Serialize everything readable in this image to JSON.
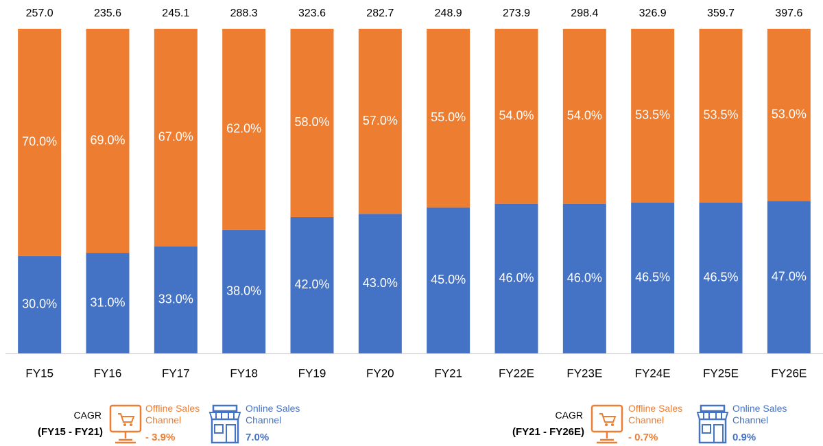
{
  "chart_data": {
    "type": "stacked_bar",
    "categories": [
      "FY15",
      "FY16",
      "FY17",
      "FY18",
      "FY19",
      "FY20",
      "FY21",
      "FY22E",
      "FY23E",
      "FY24E",
      "FY25E",
      "FY26E"
    ],
    "ylim": [
      0,
      100
    ],
    "series": [
      {
        "name": "Online Sales Channel",
        "color": "#4472c4",
        "values": [
          30,
          31,
          33,
          38,
          42,
          43,
          45,
          46,
          46,
          46.5,
          46.5,
          47
        ],
        "value_labels": [
          "30.0%",
          "31.0%",
          "33.0%",
          "38.0%",
          "42.0%",
          "43.0%",
          "45.0%",
          "46.0%",
          "46.0%",
          "46.5%",
          "46.5%",
          "47.0%"
        ]
      },
      {
        "name": "Offline Sales Channel",
        "color": "#ed7d31",
        "values": [
          70,
          69,
          67,
          62,
          58,
          57,
          55,
          54,
          54,
          53.5,
          53.5,
          53
        ],
        "value_labels": [
          "70.0%",
          "69.0%",
          "67.0%",
          "62.0%",
          "58.0%",
          "57.0%",
          "55.0%",
          "54.0%",
          "54.0%",
          "53.5%",
          "53.5%",
          "53.0%"
        ]
      }
    ],
    "totals": {
      "values": [
        257,
        235.6,
        245.1,
        288.3,
        323.6,
        282.7,
        248.9,
        273.9,
        298.4,
        326.9,
        359.7,
        397.6
      ],
      "value_labels": [
        "257.0",
        "235.6",
        "245.1",
        "288.3",
        "323.6",
        "282.7",
        "248.9",
        "273.9",
        "298.4",
        "326.9",
        "359.7",
        "397.6"
      ]
    },
    "cagr": [
      {
        "label": "CAGR",
        "period": "(FY15 - FY21)",
        "offline": "- 3.9%",
        "online": "7.0%"
      },
      {
        "label": "CAGR",
        "period": "(FY21 - FY26E)",
        "offline": "- 0.7%",
        "online": "0.9%"
      }
    ]
  }
}
